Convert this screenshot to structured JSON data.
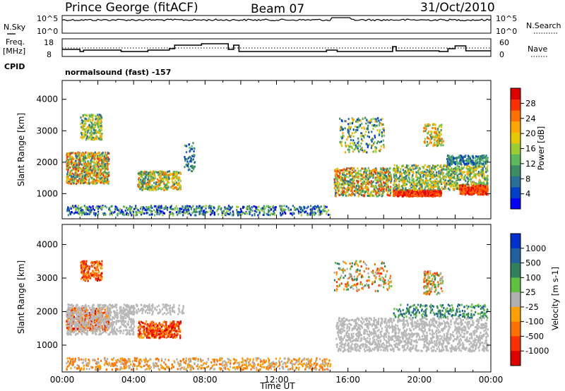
{
  "header": {
    "station": "Prince George (fitACF)",
    "beam": "Beam 07",
    "date": "31/Oct/2010"
  },
  "strip_panels": {
    "nsky": {
      "left_label": "N.Sky",
      "left_ticks": [
        "10^5",
        "10^0"
      ],
      "right_label": "N.Search",
      "right_ticks": [
        "10^5",
        "10^0"
      ]
    },
    "freq": {
      "left_label_line1": "Freq.",
      "left_label_line2": "[MHz]",
      "left_ticks": [
        "18",
        "8"
      ],
      "right_label": "Nave",
      "right_ticks": [
        "60",
        "0"
      ]
    },
    "cpid": {
      "label": "CPID",
      "program": "normalsound (fast) -157"
    }
  },
  "chart_data": [
    {
      "type": "heatmap",
      "name": "power",
      "ylabel": "Slant Range [km]",
      "ylim": [
        200,
        4600
      ],
      "yticks": [
        1000,
        2000,
        3000,
        4000
      ],
      "xlim_hours": [
        0,
        24
      ],
      "colorbar": {
        "label": "Power [dB]",
        "ticks": [
          4,
          8,
          12,
          16,
          20,
          24,
          28
        ],
        "range": [
          0,
          32
        ]
      }
    },
    {
      "type": "heatmap",
      "name": "velocity",
      "ylabel": "Slant Range [km]",
      "xlabel": "Time UT",
      "ylim": [
        200,
        4600
      ],
      "yticks": [
        1000,
        2000,
        3000,
        4000
      ],
      "xlim_hours": [
        0,
        24
      ],
      "xticks": [
        "00:00",
        "04:00",
        "08:00",
        "12:00",
        "16:00",
        "20:00",
        "00:00"
      ],
      "colorbar": {
        "label": "Velocity [m s-1]",
        "ticks": [
          "1000",
          "500",
          "100",
          "25",
          "-25",
          "-100",
          "-500",
          "-1000"
        ]
      }
    }
  ],
  "colors": {
    "power_scale": [
      "#0000ff",
      "#0040c8",
      "#2a6e9a",
      "#3c8c64",
      "#5cb85c",
      "#9acd32",
      "#e6c800",
      "#ffa500",
      "#ff7000",
      "#ff3000",
      "#e00000"
    ],
    "velocity_scale": [
      "#0030d0",
      "#2060a0",
      "#308060",
      "#60c040",
      "#b0b0b0",
      "#ffa000",
      "#ff7000",
      "#ff3000",
      "#e00000"
    ],
    "ground_scatter": "#b8b8b8"
  }
}
